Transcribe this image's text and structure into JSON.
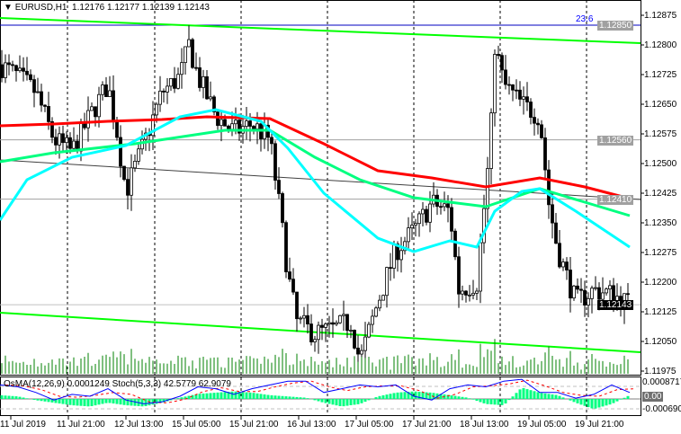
{
  "header": {
    "symbol": "EURUSD,H1",
    "ohlc": "1.12176 1.12177 1.12139 1.12143"
  },
  "price_axis": {
    "ticks": [
      "1.12875",
      "1.12800",
      "1.12725",
      "1.12650",
      "1.12575",
      "1.12500",
      "1.12425",
      "1.12350",
      "1.12275",
      "1.12200",
      "1.12125",
      "1.12050",
      "1.11975"
    ],
    "levels": [
      {
        "label": "1.12850",
        "color": "#a0a0a0"
      },
      {
        "label": "1.12560",
        "color": "#a0a0a0"
      },
      {
        "label": "1.12410",
        "color": "#a0a0a0"
      }
    ],
    "current": "1.12143",
    "fib_label": "23.6"
  },
  "oscillator": {
    "label": "OsMA(12,26,9) 0.0001249  Stoch(5,3,3) 42.5779 62.9079",
    "top": "0.0008717",
    "top_level": "80",
    "zero": "0.00",
    "bottom": "-0.000690",
    "bottom_level": "20",
    "stoch": [
      80,
      75,
      60,
      40,
      55,
      50,
      70,
      40,
      30,
      35,
      50,
      75,
      70,
      55,
      70,
      80,
      90,
      90,
      60,
      70,
      80,
      75,
      80,
      50,
      40,
      70,
      80,
      75,
      90,
      95,
      60,
      60,
      45,
      55,
      80,
      60
    ],
    "osma": [
      0.3,
      0.2,
      -0.1,
      -0.3,
      -0.5,
      -0.6,
      -0.3,
      -0.5,
      -0.6,
      -0.3,
      0.1,
      0.4,
      0.5,
      0.6,
      0.5,
      0.3,
      0.2,
      0.1,
      -0.3,
      -0.6,
      -0.4,
      0.2,
      0.5,
      0.6,
      0.5,
      0.3,
      0.1,
      -0.4,
      -0.5,
      0.9,
      0.5,
      0.3,
      -0.3,
      -0.8,
      -0.4,
      0.3
    ]
  },
  "time_axis": [
    "11 Jul 2019",
    "11 Jul 21:00",
    "12 Jul 13:00",
    "15 Jul 05:00",
    "15 Jul 21:00",
    "16 Jul 13:00",
    "17 Jul 05:00",
    "17 Jul 21:00",
    "18 Jul 13:00",
    "19 Jul 05:00",
    "19 Jul 21:00"
  ],
  "colors": {
    "channel": "#00ff00",
    "ma_slow": "#ff0000",
    "ma_fast": "#00ffff",
    "ma_mid": "#00ff80",
    "volume": "#008000",
    "stoch_main": "#0000ff",
    "stoch_signal": "#ff0000"
  },
  "chart_data": {
    "type": "candlestick",
    "symbol": "EURUSD",
    "timeframe": "H1",
    "ylim": [
      1.1194,
      1.1291
    ],
    "close_path": [
      [
        0,
        1.1275
      ],
      [
        20,
        1.1272
      ],
      [
        40,
        1.1268
      ],
      [
        60,
        1.1256
      ],
      [
        80,
        1.1253
      ],
      [
        100,
        1.1262
      ],
      [
        120,
        1.127
      ],
      [
        130,
        1.1258
      ],
      [
        140,
        1.1243
      ],
      [
        160,
        1.1255
      ],
      [
        180,
        1.1268
      ],
      [
        200,
        1.1272
      ],
      [
        210,
        1.128
      ],
      [
        220,
        1.1272
      ],
      [
        240,
        1.1262
      ],
      [
        260,
        1.1258
      ],
      [
        280,
        1.126
      ],
      [
        300,
        1.1256
      ],
      [
        310,
        1.124
      ],
      [
        320,
        1.1222
      ],
      [
        330,
        1.121
      ],
      [
        350,
        1.1207
      ],
      [
        370,
        1.1208
      ],
      [
        390,
        1.121
      ],
      [
        400,
        1.12
      ],
      [
        420,
        1.1215
      ],
      [
        440,
        1.1228
      ],
      [
        460,
        1.1233
      ],
      [
        480,
        1.124
      ],
      [
        500,
        1.1238
      ],
      [
        510,
        1.1218
      ],
      [
        530,
        1.122
      ],
      [
        545,
        1.1255
      ],
      [
        550,
        1.128
      ],
      [
        560,
        1.127
      ],
      [
        580,
        1.1265
      ],
      [
        600,
        1.1262
      ],
      [
        610,
        1.124
      ],
      [
        620,
        1.1228
      ],
      [
        640,
        1.1215
      ],
      [
        660,
        1.1218
      ],
      [
        680,
        1.1217
      ],
      [
        700,
        1.12143
      ]
    ]
  }
}
